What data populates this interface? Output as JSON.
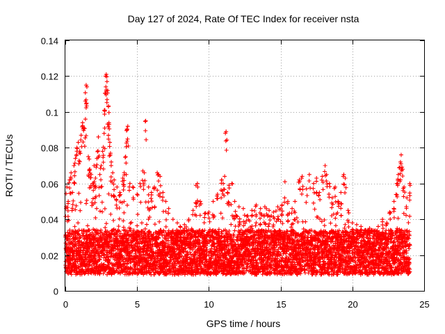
{
  "chart_data": {
    "type": "scatter",
    "title": "Day 127 of 2024, Rate Of TEC Index for receiver nsta",
    "xlabel": "GPS time / hours",
    "ylabel": "ROTI / TECUs",
    "xlim": [
      0,
      25
    ],
    "ylim": [
      0,
      0.14
    ],
    "xticks": [
      0,
      5,
      10,
      15,
      20,
      25
    ],
    "xtick_labels": [
      "0",
      "5",
      "10",
      "15",
      "20",
      "25"
    ],
    "yticks": [
      0,
      0.02,
      0.04,
      0.06,
      0.08,
      0.1,
      0.12,
      0.14
    ],
    "ytick_labels": [
      "0",
      "0.02",
      "0.04",
      "0.06",
      "0.08",
      "0.1",
      "0.12",
      "0.14"
    ],
    "grid": true,
    "marker": "+",
    "color": "#ff0000",
    "series": [
      {
        "name": "ROTI",
        "points": [
          [
            0.1,
            0.058
          ],
          [
            0.2,
            0.05
          ],
          [
            0.3,
            0.062
          ],
          [
            0.4,
            0.066
          ],
          [
            0.5,
            0.055
          ],
          [
            0.6,
            0.07
          ],
          [
            0.7,
            0.074
          ],
          [
            0.8,
            0.08
          ],
          [
            0.9,
            0.083
          ],
          [
            1.0,
            0.078
          ],
          [
            1.1,
            0.087
          ],
          [
            1.2,
            0.094
          ],
          [
            1.3,
            0.091
          ],
          [
            1.4,
            0.096
          ],
          [
            1.45,
            0.115
          ],
          [
            1.5,
            0.114
          ],
          [
            1.6,
            0.075
          ],
          [
            1.7,
            0.068
          ],
          [
            1.8,
            0.065
          ],
          [
            1.9,
            0.06
          ],
          [
            2.0,
            0.07
          ],
          [
            2.1,
            0.063
          ],
          [
            2.2,
            0.074
          ],
          [
            2.3,
            0.086
          ],
          [
            2.4,
            0.065
          ],
          [
            2.5,
            0.07
          ],
          [
            2.6,
            0.078
          ],
          [
            2.7,
            0.088
          ],
          [
            2.75,
            0.101
          ],
          [
            2.8,
            0.12
          ],
          [
            2.85,
            0.121
          ],
          [
            2.9,
            0.117
          ],
          [
            2.95,
            0.112
          ],
          [
            3.0,
            0.103
          ],
          [
            3.05,
            0.093
          ],
          [
            3.1,
            0.083
          ],
          [
            3.2,
            0.072
          ],
          [
            3.3,
            0.066
          ],
          [
            3.4,
            0.062
          ],
          [
            3.6,
            0.058
          ],
          [
            3.8,
            0.055
          ],
          [
            4.0,
            0.063
          ],
          [
            4.1,
            0.066
          ],
          [
            4.2,
            0.075
          ],
          [
            4.3,
            0.09
          ],
          [
            4.35,
            0.092
          ],
          [
            4.5,
            0.06
          ],
          [
            4.7,
            0.058
          ],
          [
            5.0,
            0.054
          ],
          [
            5.2,
            0.06
          ],
          [
            5.4,
            0.067
          ],
          [
            5.5,
            0.066
          ],
          [
            5.6,
            0.095
          ],
          [
            5.8,
            0.058
          ],
          [
            6.0,
            0.055
          ],
          [
            6.2,
            0.058
          ],
          [
            6.4,
            0.066
          ],
          [
            6.5,
            0.065
          ],
          [
            6.6,
            0.064
          ],
          [
            6.8,
            0.055
          ],
          [
            7.0,
            0.05
          ],
          [
            7.2,
            0.046
          ],
          [
            7.5,
            0.04
          ],
          [
            7.8,
            0.038
          ],
          [
            8.0,
            0.036
          ],
          [
            8.3,
            0.037
          ],
          [
            8.6,
            0.04
          ],
          [
            8.9,
            0.045
          ],
          [
            9.1,
            0.059
          ],
          [
            9.2,
            0.06
          ],
          [
            9.4,
            0.05
          ],
          [
            9.7,
            0.041
          ],
          [
            10.0,
            0.044
          ],
          [
            10.3,
            0.05
          ],
          [
            10.6,
            0.054
          ],
          [
            10.9,
            0.062
          ],
          [
            11.0,
            0.06
          ],
          [
            11.1,
            0.064
          ],
          [
            11.2,
            0.089
          ],
          [
            11.3,
            0.055
          ],
          [
            11.4,
            0.059
          ],
          [
            11.6,
            0.06
          ],
          [
            11.8,
            0.05
          ],
          [
            12.1,
            0.047
          ],
          [
            12.4,
            0.046
          ],
          [
            12.7,
            0.042
          ],
          [
            13.0,
            0.045
          ],
          [
            13.3,
            0.048
          ],
          [
            13.6,
            0.046
          ],
          [
            13.9,
            0.047
          ],
          [
            14.2,
            0.045
          ],
          [
            14.5,
            0.044
          ],
          [
            14.8,
            0.047
          ],
          [
            15.1,
            0.048
          ],
          [
            15.3,
            0.061
          ],
          [
            15.5,
            0.05
          ],
          [
            15.8,
            0.046
          ],
          [
            16.0,
            0.05
          ],
          [
            16.3,
            0.062
          ],
          [
            16.5,
            0.064
          ],
          [
            16.8,
            0.057
          ],
          [
            17.0,
            0.065
          ],
          [
            17.3,
            0.06
          ],
          [
            17.5,
            0.063
          ],
          [
            17.7,
            0.055
          ],
          [
            17.9,
            0.064
          ],
          [
            18.1,
            0.07
          ],
          [
            18.2,
            0.065
          ],
          [
            18.4,
            0.06
          ],
          [
            18.6,
            0.052
          ],
          [
            18.8,
            0.058
          ],
          [
            19.0,
            0.05
          ],
          [
            19.2,
            0.055
          ],
          [
            19.4,
            0.065
          ],
          [
            19.5,
            0.063
          ],
          [
            19.7,
            0.045
          ],
          [
            20.0,
            0.038
          ],
          [
            20.3,
            0.037
          ],
          [
            20.6,
            0.036
          ],
          [
            20.9,
            0.034
          ],
          [
            21.2,
            0.035
          ],
          [
            21.5,
            0.033
          ],
          [
            21.8,
            0.036
          ],
          [
            22.1,
            0.04
          ],
          [
            22.4,
            0.038
          ],
          [
            22.6,
            0.044
          ],
          [
            22.9,
            0.05
          ],
          [
            23.1,
            0.06
          ],
          [
            23.2,
            0.065
          ],
          [
            23.3,
            0.069
          ],
          [
            23.35,
            0.072
          ],
          [
            23.4,
            0.076
          ],
          [
            23.5,
            0.068
          ],
          [
            23.6,
            0.058
          ],
          [
            23.8,
            0.052
          ],
          [
            24.0,
            0.06
          ]
        ],
        "baseline_band": [
          0.005,
          0.03
        ]
      }
    ]
  }
}
